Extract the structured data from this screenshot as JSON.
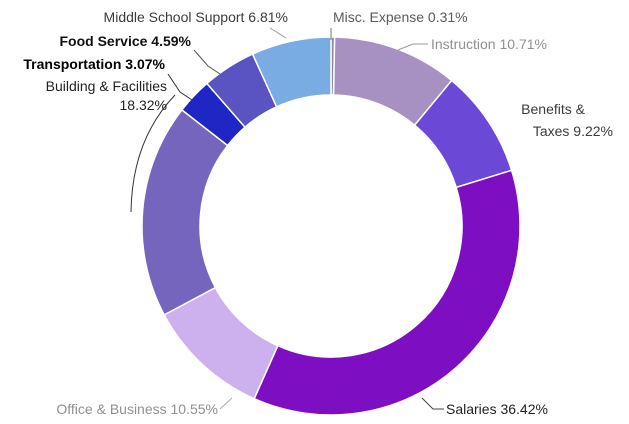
{
  "chart_data": {
    "type": "pie",
    "variant": "donut",
    "title": "",
    "slices": [
      {
        "name": "Misc. Expense",
        "value": 0.31,
        "label": "Misc. Expense 0.31%",
        "color": "#8f86a8"
      },
      {
        "name": "Instruction",
        "value": 10.71,
        "label": "Instruction 10.71%",
        "color": "#a791c3"
      },
      {
        "name": "Benefits & Taxes",
        "value": 9.22,
        "label": "Benefits & Taxes 9.22%",
        "color": "#6c48d6"
      },
      {
        "name": "Salaries",
        "value": 36.42,
        "label": "Salaries 36.42%",
        "color": "#7d0ec2"
      },
      {
        "name": "Office & Business",
        "value": 10.55,
        "label": "Office & Business 10.55%",
        "color": "#cdb0ee"
      },
      {
        "name": "Building & Facilities",
        "value": 18.32,
        "label": "Building & Facilities 18.32%",
        "color": "#7565bd"
      },
      {
        "name": "Transportation",
        "value": 3.07,
        "label": "Transportation 3.07%",
        "color": "#1f26c4"
      },
      {
        "name": "Food Service",
        "value": 4.59,
        "label": "Food Service 4.59%",
        "color": "#5a53c2"
      },
      {
        "name": "Middle School Support",
        "value": 6.81,
        "label": "Middle School Support 6.81%",
        "color": "#79ace2"
      }
    ],
    "labels": {
      "misc": "Misc. Expense 0.31%",
      "instruction": "Instruction 10.71%",
      "benefits_line1": "Benefits &",
      "benefits_line2": "Taxes 9.22%",
      "salaries": "Salaries 36.42%",
      "office": "Office & Business 10.55%",
      "building_line1": "Building & Facilities",
      "building_line2": "18.32%",
      "transportation": "Transportation 3.07%",
      "food": "Food Service 4.59%",
      "middle": "Middle School Support 6.81%"
    },
    "legend": "none",
    "grid": false
  }
}
